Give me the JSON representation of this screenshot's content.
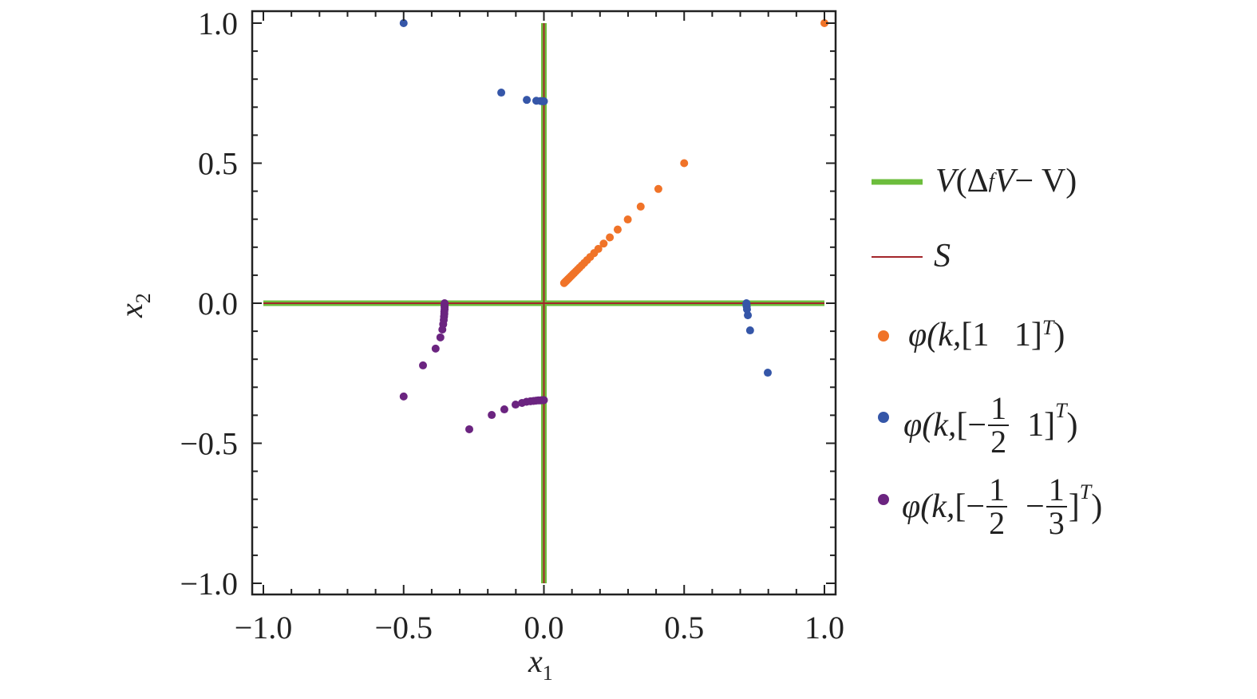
{
  "chart_data": {
    "type": "scatter",
    "xlabel": "x",
    "xlabel_sub": "1",
    "ylabel": "x",
    "ylabel_sub": "2",
    "xlim": [
      -1.0,
      1.0
    ],
    "ylim": [
      -1.0,
      1.0
    ],
    "xticks": [
      "−1.0",
      "−0.5",
      "0.0",
      "0.5",
      "1.0"
    ],
    "yticks": [
      "1.0",
      "0.5",
      "0.0",
      "−0.5",
      "−1.0"
    ],
    "xtick_values": [
      -1.0,
      -0.5,
      0.0,
      0.5,
      1.0
    ],
    "ytick_values": [
      1.0,
      0.5,
      0.0,
      -0.5,
      -1.0
    ],
    "grid": false,
    "legend_placement": "right-outside",
    "colors": {
      "green": "#6cbd3c",
      "red": "#a3262b",
      "orange": "#f07328",
      "blue": "#3556a8",
      "purple": "#6b2480"
    },
    "lines": [
      {
        "name": "V(Δ_f V − V)",
        "color": "#6cbd3c",
        "segments": [
          [
            [
              0,
              -1
            ],
            [
              0,
              1
            ]
          ],
          [
            [
              -1,
              0
            ],
            [
              1,
              0
            ]
          ]
        ]
      },
      {
        "name": "S",
        "color": "#a3262b",
        "segments": [
          [
            [
              0,
              -1
            ],
            [
              0,
              1
            ]
          ],
          [
            [
              -1,
              0
            ],
            [
              1,
              0
            ]
          ]
        ]
      }
    ],
    "series": [
      {
        "name": "φ(k, [1 1]^T)",
        "color": "#f07328",
        "points": [
          [
            1,
            1
          ],
          [
            0.5,
            0.5
          ],
          [
            0.408,
            0.408
          ],
          [
            0.345,
            0.345
          ],
          [
            0.299,
            0.299
          ],
          [
            0.263,
            0.263
          ],
          [
            0.235,
            0.235
          ],
          [
            0.213,
            0.213
          ],
          [
            0.194,
            0.194
          ],
          [
            0.179,
            0.179
          ],
          [
            0.165,
            0.165
          ],
          [
            0.154,
            0.154
          ],
          [
            0.144,
            0.144
          ],
          [
            0.135,
            0.135
          ],
          [
            0.127,
            0.127
          ],
          [
            0.12,
            0.12
          ],
          [
            0.114,
            0.114
          ],
          [
            0.108,
            0.108
          ],
          [
            0.103,
            0.103
          ],
          [
            0.098,
            0.098
          ],
          [
            0.094,
            0.094
          ],
          [
            0.09,
            0.09
          ],
          [
            0.086,
            0.086
          ],
          [
            0.083,
            0.083
          ],
          [
            0.08,
            0.08
          ],
          [
            0.077,
            0.077
          ],
          [
            0.074,
            0.074
          ],
          [
            0.072,
            0.072
          ]
        ]
      },
      {
        "name": "φ(k, [−1/2 1]^T)",
        "color": "#3556a8",
        "points": [
          [
            -0.5,
            1
          ],
          [
            -0.152,
            0.752
          ],
          [
            -0.061,
            0.726
          ],
          [
            -0.027,
            0.723
          ],
          [
            -0.012,
            0.722
          ],
          [
            -0.005,
            0.721
          ],
          [
            0.0,
            0.721
          ],
          [
            0.798,
            -0.248
          ],
          [
            0.735,
            -0.097
          ],
          [
            0.727,
            -0.043
          ],
          [
            0.724,
            -0.022
          ],
          [
            0.723,
            -0.012
          ],
          [
            0.722,
            -0.006
          ],
          [
            0.722,
            -0.002
          ],
          [
            0.722,
            0.0
          ]
        ]
      },
      {
        "name": "φ(k, [−1/2 −1/3]^T)",
        "color": "#6b2480",
        "points": [
          [
            -0.5,
            -0.333
          ],
          [
            -0.431,
            -0.222
          ],
          [
            -0.386,
            -0.162
          ],
          [
            -0.369,
            -0.122
          ],
          [
            -0.362,
            -0.094
          ],
          [
            -0.359,
            -0.075
          ],
          [
            -0.357,
            -0.06
          ],
          [
            -0.356,
            -0.048
          ],
          [
            -0.355,
            -0.038
          ],
          [
            -0.355,
            -0.03
          ],
          [
            -0.354,
            -0.022
          ],
          [
            -0.354,
            -0.015
          ],
          [
            -0.354,
            -0.009
          ],
          [
            -0.354,
            -0.004
          ],
          [
            -0.354,
            0.0
          ],
          [
            -0.266,
            -0.45
          ],
          [
            -0.186,
            -0.399
          ],
          [
            -0.141,
            -0.379
          ],
          [
            -0.101,
            -0.362
          ],
          [
            -0.078,
            -0.356
          ],
          [
            -0.062,
            -0.352
          ],
          [
            -0.048,
            -0.35
          ],
          [
            -0.037,
            -0.349
          ],
          [
            -0.028,
            -0.348
          ],
          [
            -0.02,
            -0.347
          ],
          [
            -0.013,
            -0.347
          ],
          [
            -0.007,
            -0.346
          ],
          [
            -0.002,
            -0.346
          ],
          [
            0.0,
            -0.346
          ]
        ]
      }
    ]
  },
  "legend": {
    "green": {
      "V1": "V",
      "open": "(Δ",
      "sub": "f",
      "V2": "V",
      "rest": " − V)"
    },
    "red": {
      "label": "S"
    },
    "orange": {
      "phi": "φ",
      "args": "(k, ",
      "vec": "[1   1]",
      "T": "T",
      "close": ")"
    },
    "blue": {
      "phi": "φ",
      "args": "(k, ",
      "open": "[−",
      "num": "1",
      "den": "2",
      "mid": "  1]",
      "T": "T",
      "close": ")"
    },
    "purple": {
      "phi": "φ",
      "args": "(k, ",
      "open": "[−",
      "num1": "1",
      "den1": "2",
      "mid": "  −",
      "num2": "1",
      "den2": "3",
      "end": "]",
      "T": "T",
      "close": ")"
    }
  }
}
